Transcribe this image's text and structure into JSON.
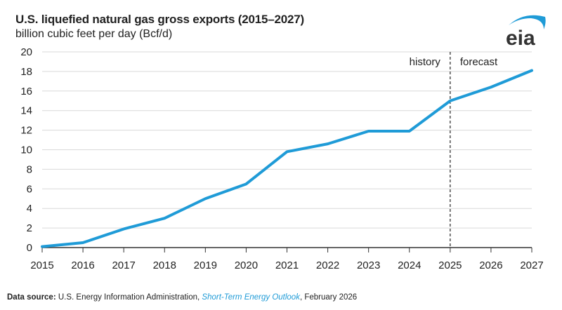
{
  "header": {
    "title": "U.S. liquefied natural gas gross exports (2015–2027)",
    "subtitle": "billion cubic feet per day (Bcf/d)",
    "logo_text": "eia"
  },
  "footer": {
    "source_label": "Data source:",
    "source_text": " U.S. Energy Information Administration, ",
    "source_link": "Short-Term Energy Outlook",
    "source_date": ", February 2026"
  },
  "chart_data": {
    "type": "line",
    "title": "U.S. liquefied natural gas gross exports (2015–2027)",
    "ylabel": "billion cubic feet per day (Bcf/d)",
    "x": [
      2015,
      2016,
      2017,
      2018,
      2019,
      2020,
      2021,
      2022,
      2023,
      2024,
      2025,
      2026,
      2027
    ],
    "series": [
      {
        "values": [
          0.1,
          0.5,
          1.9,
          3.0,
          5.0,
          6.5,
          9.8,
          10.6,
          11.9,
          11.9,
          15.0,
          16.4,
          18.1
        ],
        "color": "#1f9bd7"
      }
    ],
    "ylim": [
      0,
      20
    ],
    "yticks": [
      0,
      2,
      4,
      6,
      8,
      10,
      12,
      14,
      16,
      18,
      20
    ],
    "xlim": [
      2015,
      2027
    ],
    "grid": "horizontal",
    "divider": {
      "x": 2025,
      "style": "dashed",
      "left_label": "history",
      "right_label": "forecast"
    }
  }
}
